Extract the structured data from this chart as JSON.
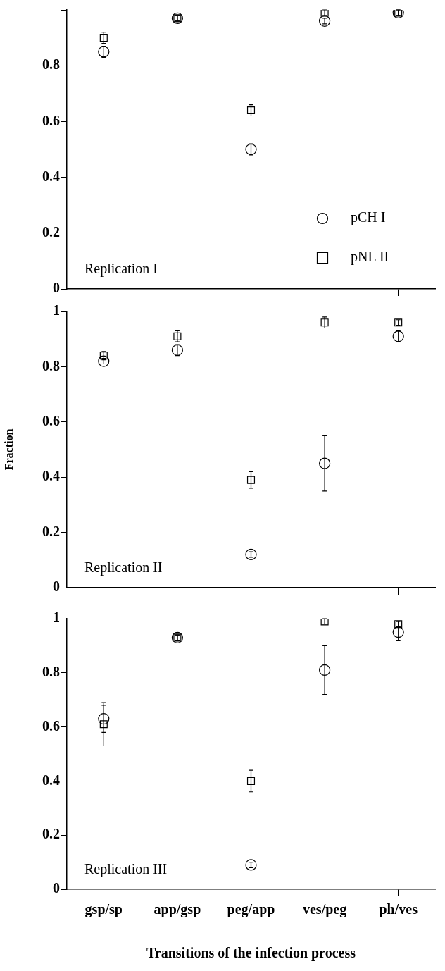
{
  "chart_data": [
    {
      "type": "scatter",
      "categories": [
        null,
        null,
        null,
        null,
        null
      ],
      "ylim": [
        0,
        1
      ],
      "yticks": [
        0,
        0.2,
        0.4,
        0.6,
        0.8,
        {
          "value": 1,
          "label": null
        }
      ],
      "tick_labels": "y",
      "legend": "bottom right",
      "annotations": [
        "Replication I"
      ],
      "series": [
        {
          "name": "pCH I",
          "color": "#000000",
          "marker": "circle",
          "values": [
            0.85,
            0.97,
            0.5,
            0.96,
            0.99
          ],
          "errors": [
            0.02,
            0.01,
            0.02,
            0.01,
            0.01
          ]
        },
        {
          "name": "pNL II",
          "color": "#000000",
          "marker": "square",
          "values": [
            0.9,
            0.97,
            0.64,
            0.99,
            0.99
          ],
          "errors": [
            0.02,
            0.01,
            0.02,
            0.01,
            0.01
          ]
        }
      ]
    },
    {
      "type": "scatter",
      "categories": [
        null,
        null,
        null,
        null,
        null
      ],
      "ylim": [
        0,
        1
      ],
      "yticks": [
        0,
        0.2,
        0.4,
        0.6,
        0.8,
        1
      ],
      "ylabel": "Fraction",
      "tick_labels": "y",
      "annotations": [
        "Replication II"
      ],
      "series": [
        {
          "color": "#000000",
          "marker": "circle",
          "values": [
            0.82,
            0.86,
            0.12,
            0.45,
            0.91
          ],
          "errors": [
            0.01,
            0.02,
            0.01,
            0.1,
            0.02
          ]
        },
        {
          "color": "#000000",
          "marker": "square",
          "values": [
            0.84,
            0.91,
            0.39,
            0.96,
            0.96
          ],
          "errors": [
            0.015,
            0.02,
            0.03,
            0.02,
            0.01
          ]
        }
      ]
    },
    {
      "type": "scatter",
      "categories": [
        "gsp/sp",
        "app/gsp",
        "peg/app",
        "ves/peg",
        "ph/ves"
      ],
      "ylim": [
        0,
        1
      ],
      "yticks": [
        0,
        0.2,
        0.4,
        0.6,
        0.8,
        1
      ],
      "xlabel": "Transitions of the infection process",
      "annotations": [
        "Replication III"
      ],
      "series": [
        {
          "color": "#000000",
          "marker": "circle",
          "values": [
            0.63,
            0.93,
            0.09,
            0.81,
            0.95
          ],
          "errors": [
            [
              0.58,
              0.69
            ],
            0.01,
            0.01,
            [
              0.72,
              0.9
            ],
            [
              0.92,
              0.99
            ]
          ]
        },
        {
          "color": "#000000",
          "marker": "square",
          "values": [
            0.61,
            0.93,
            0.4,
            0.99,
            0.98
          ],
          "errors": [
            [
              0.53,
              0.68
            ],
            0.01,
            [
              0.36,
              0.44
            ],
            0.01,
            0.01
          ]
        }
      ]
    }
  ]
}
